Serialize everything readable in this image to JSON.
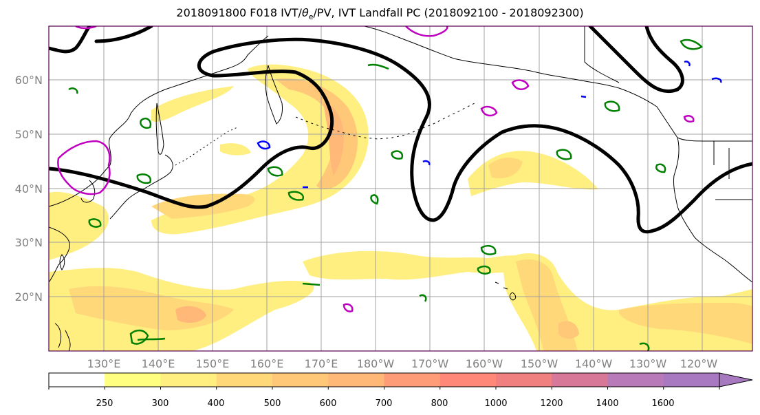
{
  "title": {
    "prefix": "2018091800 F018 IVT/",
    "theta_symbol": "θ",
    "theta_sub": "e",
    "suffix": "/PV, IVT Landfall PC (2018092100 - 2018092300)"
  },
  "map": {
    "latitude_labels": [
      "60°N",
      "50°N",
      "40°N",
      "30°N",
      "20°N"
    ],
    "longitude_labels": [
      "130°E",
      "140°E",
      "150°E",
      "160°E",
      "170°E",
      "180°W",
      "170°W",
      "160°W",
      "150°W",
      "140°W",
      "130°W",
      "120°W"
    ],
    "colors": {
      "pv_contour": "#000000",
      "green_contour": "#008000",
      "magenta_contour": "#c000c0",
      "blue_contour": "#0000ff",
      "coastline": "#000000",
      "gridline": "#a0a0a0",
      "frame": "#550055"
    }
  },
  "colorbar": {
    "levels": [
      "250",
      "300",
      "400",
      "500",
      "600",
      "700",
      "800",
      "1000",
      "1200",
      "1400",
      "1600"
    ],
    "colors": [
      "#ffffff",
      "#ffff80",
      "#ffee80",
      "#ffd87a",
      "#ffc878",
      "#ffb878",
      "#ff9c78",
      "#ff8878",
      "#f08080",
      "#d87898",
      "#b87ab8",
      "#a878c0"
    ]
  }
}
